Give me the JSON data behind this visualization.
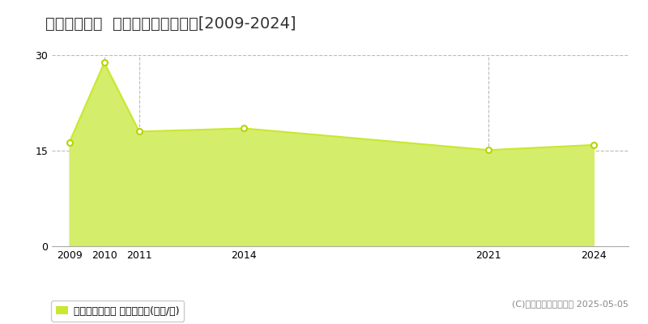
{
  "title": "北見市三住町  マンション価格推移[2009-2024]",
  "years": [
    2009,
    2010,
    2011,
    2014,
    2021,
    2024
  ],
  "values": [
    16.3,
    28.8,
    18.0,
    18.5,
    15.1,
    15.9
  ],
  "line_color": "#c8e832",
  "fill_color": "#d4ed6a",
  "marker_color": "#ffffff",
  "marker_edge_color": "#b8d400",
  "ylim": [
    0,
    30
  ],
  "yticks": [
    0,
    15,
    30
  ],
  "grid_color": "#bbbbbb",
  "background_color": "#ffffff",
  "legend_label": "マンション価格 平均坪単価(万円/坪)",
  "legend_marker_color": "#c8e832",
  "copyright_text": "(C)土地価格ドットコム 2025-05-05",
  "dashed_vlines": [
    2010,
    2011,
    2021
  ],
  "title_fontsize": 14,
  "tick_fontsize": 9,
  "legend_fontsize": 9,
  "copyright_fontsize": 8,
  "xlim_left": 2008.5,
  "xlim_right": 2025.0
}
